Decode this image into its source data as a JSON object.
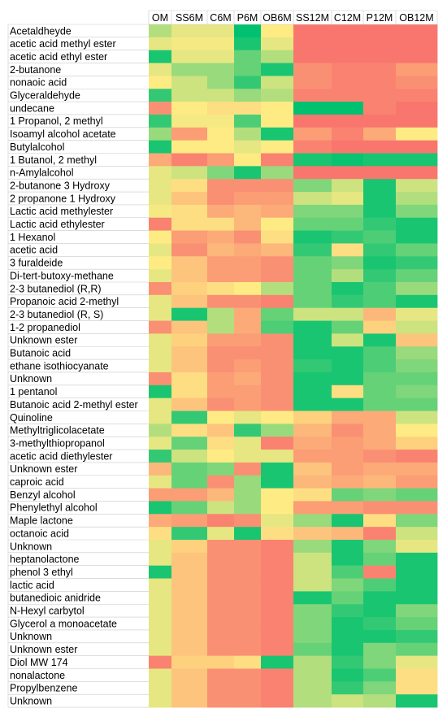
{
  "chart_data": {
    "type": "heatmap",
    "columns": [
      "OM",
      "SS6M",
      "C6M",
      "P6M",
      "OB6M",
      "SS12M",
      "C12M",
      "P12M",
      "OB12M"
    ],
    "rows": [
      "Acetaldheyde",
      "acetic acid methyl ester",
      "acetic acid ethyl ester",
      "2-butanone",
      "nonaoic acid",
      "Glyceraldehyde",
      "undecane",
      "1 Propanol, 2 methyl",
      "Isoamyl alcohol acetate",
      "Butylalcohol",
      "1 Butanol, 2 methyl",
      "n-Amylalcohol",
      "2-butanone 3 Hydroxy",
      "2 propanone 1 Hydroxy",
      "Lactic acid methylester",
      "Lactic acid ethylester",
      "1 Hexanol",
      "acetic acid",
      "3 furaldeide",
      "Di-tert-butoxy-methane",
      "2-3 butanediol (R,R)",
      "Propanoic acid 2-methyl",
      "2-3 butanediol  (R, S)",
      "1-2 propanediol",
      "Unknown ester",
      "Butanoic acid",
      "ethane isothiocyanate",
      "Unknown",
      "1 pentanol",
      "Butanoic acid 2-methyl ester",
      "Quinoline",
      "Methyltriglicolacetate",
      "3-methylthiopropanol",
      "acetic acid diethylester",
      "Unknown ester",
      "caproic acid",
      "Benzyl alcohol",
      "Phenylethyl alcohol",
      "Maple lactone",
      "octanoic acid",
      "Unknown",
      "heptanolactone",
      "phenol 3 ethyl",
      "lactic acid",
      "butanedioic anidride",
      "N-Hexyl carbytol",
      "Glycerol a monoacetate",
      "Unknown",
      "Unknown ester",
      "Diol MW 174",
      "nonalactone",
      "Propylbenzene",
      "Unknown"
    ],
    "color_scale": {
      "low": "#00c170",
      "mid": "#ffeb84",
      "high": "#f8696b"
    },
    "values": [
      [
        0.35,
        0.45,
        0.45,
        0.0,
        0.5,
        0.95,
        0.95,
        0.95,
        0.95
      ],
      [
        0.45,
        0.48,
        0.48,
        0.05,
        0.45,
        0.95,
        0.95,
        0.95,
        0.95
      ],
      [
        0.05,
        0.45,
        0.45,
        0.2,
        0.35,
        0.95,
        0.95,
        0.95,
        0.95
      ],
      [
        0.45,
        0.3,
        0.3,
        0.2,
        0.05,
        0.85,
        0.9,
        0.9,
        0.8
      ],
      [
        0.5,
        0.4,
        0.3,
        0.1,
        0.4,
        0.85,
        0.9,
        0.9,
        0.85
      ],
      [
        0.1,
        0.4,
        0.4,
        0.3,
        0.35,
        0.9,
        0.9,
        0.9,
        0.9
      ],
      [
        0.85,
        0.5,
        0.55,
        0.55,
        0.5,
        0.0,
        0.0,
        0.9,
        0.95
      ],
      [
        0.1,
        0.48,
        0.48,
        0.15,
        0.5,
        0.95,
        0.95,
        0.95,
        0.95
      ],
      [
        0.3,
        0.8,
        0.5,
        0.35,
        0.05,
        0.8,
        0.9,
        0.75,
        0.5
      ],
      [
        0.05,
        0.5,
        0.5,
        0.45,
        0.5,
        0.9,
        0.95,
        0.95,
        0.95
      ],
      [
        0.75,
        0.9,
        0.8,
        0.5,
        0.9,
        0.05,
        0.02,
        0.05,
        0.05
      ],
      [
        0.45,
        0.4,
        0.25,
        0.05,
        0.3,
        0.95,
        0.95,
        0.95,
        0.95
      ],
      [
        0.45,
        0.55,
        0.85,
        0.85,
        0.85,
        0.25,
        0.4,
        0.05,
        0.4
      ],
      [
        0.45,
        0.65,
        0.85,
        0.8,
        0.8,
        0.4,
        0.45,
        0.05,
        0.35
      ],
      [
        0.48,
        0.55,
        0.75,
        0.7,
        0.75,
        0.25,
        0.25,
        0.05,
        0.25
      ],
      [
        0.9,
        0.55,
        0.55,
        0.7,
        0.5,
        0.2,
        0.2,
        0.1,
        0.05
      ],
      [
        0.5,
        0.8,
        0.75,
        0.85,
        0.55,
        0.05,
        0.1,
        0.15,
        0.05
      ],
      [
        0.45,
        0.85,
        0.7,
        0.75,
        0.7,
        0.1,
        0.55,
        0.1,
        0.2
      ],
      [
        0.5,
        0.65,
        0.8,
        0.8,
        0.85,
        0.2,
        0.25,
        0.05,
        0.1
      ],
      [
        0.45,
        0.65,
        0.8,
        0.8,
        0.85,
        0.2,
        0.35,
        0.1,
        0.2
      ],
      [
        0.85,
        0.6,
        0.55,
        0.5,
        0.35,
        0.2,
        0.05,
        0.15,
        0.3
      ],
      [
        0.45,
        0.65,
        0.85,
        0.85,
        0.9,
        0.2,
        0.1,
        0.15,
        0.05
      ],
      [
        0.45,
        0.05,
        0.35,
        0.75,
        0.2,
        0.4,
        0.4,
        0.7,
        0.45
      ],
      [
        0.85,
        0.65,
        0.35,
        0.75,
        0.15,
        0.05,
        0.2,
        0.6,
        0.4
      ],
      [
        0.45,
        0.6,
        0.8,
        0.8,
        0.85,
        0.05,
        0.4,
        0.05,
        0.65
      ],
      [
        0.45,
        0.65,
        0.85,
        0.85,
        0.85,
        0.05,
        0.05,
        0.15,
        0.3
      ],
      [
        0.45,
        0.65,
        0.85,
        0.8,
        0.85,
        0.1,
        0.05,
        0.15,
        0.25
      ],
      [
        0.85,
        0.55,
        0.8,
        0.75,
        0.85,
        0.05,
        0.05,
        0.2,
        0.2
      ],
      [
        0.05,
        0.55,
        0.8,
        0.8,
        0.85,
        0.05,
        0.55,
        0.2,
        0.25
      ],
      [
        0.45,
        0.65,
        0.85,
        0.8,
        0.85,
        0.05,
        0.05,
        0.2,
        0.2
      ],
      [
        0.45,
        0.1,
        0.5,
        0.45,
        0.5,
        0.6,
        0.75,
        0.75,
        0.4
      ],
      [
        0.35,
        0.55,
        0.65,
        0.1,
        0.3,
        0.7,
        0.85,
        0.75,
        0.5
      ],
      [
        0.45,
        0.2,
        0.55,
        0.45,
        0.9,
        0.75,
        0.8,
        0.75,
        0.6
      ],
      [
        0.1,
        0.4,
        0.5,
        0.45,
        0.45,
        0.8,
        0.8,
        0.85,
        0.9
      ],
      [
        0.7,
        0.2,
        0.25,
        0.85,
        0.05,
        0.65,
        0.8,
        0.75,
        0.75
      ],
      [
        0.45,
        0.2,
        0.85,
        0.3,
        0.05,
        0.7,
        0.75,
        0.7,
        0.8
      ],
      [
        0.8,
        0.8,
        0.7,
        0.3,
        0.5,
        0.55,
        0.2,
        0.25,
        0.2
      ],
      [
        0.05,
        0.2,
        0.4,
        0.3,
        0.5,
        0.8,
        0.8,
        0.85,
        0.85
      ],
      [
        0.75,
        0.8,
        0.9,
        0.85,
        0.45,
        0.3,
        0.05,
        0.55,
        0.25
      ],
      [
        0.55,
        0.1,
        0.45,
        0.05,
        0.55,
        0.65,
        0.7,
        0.9,
        0.4
      ],
      [
        0.45,
        0.6,
        0.85,
        0.85,
        0.9,
        0.3,
        0.05,
        0.25,
        0.45
      ],
      [
        0.45,
        0.65,
        0.85,
        0.85,
        0.9,
        0.4,
        0.05,
        0.2,
        0.05
      ],
      [
        0.05,
        0.65,
        0.85,
        0.85,
        0.9,
        0.4,
        0.15,
        0.9,
        0.05
      ],
      [
        0.45,
        0.65,
        0.85,
        0.85,
        0.9,
        0.4,
        0.25,
        0.15,
        0.05
      ],
      [
        0.45,
        0.65,
        0.85,
        0.85,
        0.9,
        0.05,
        0.2,
        0.05,
        0.05
      ],
      [
        0.45,
        0.65,
        0.85,
        0.85,
        0.9,
        0.25,
        0.1,
        0.05,
        0.25
      ],
      [
        0.45,
        0.65,
        0.85,
        0.85,
        0.9,
        0.25,
        0.05,
        0.1,
        0.2
      ],
      [
        0.45,
        0.65,
        0.85,
        0.85,
        0.9,
        0.25,
        0.05,
        0.05,
        0.1
      ],
      [
        0.45,
        0.65,
        0.85,
        0.85,
        0.9,
        0.2,
        0.05,
        0.25,
        0.2
      ],
      [
        0.9,
        0.6,
        0.6,
        0.55,
        0.05,
        0.35,
        0.1,
        0.25,
        0.45
      ],
      [
        0.45,
        0.65,
        0.85,
        0.85,
        0.9,
        0.35,
        0.05,
        0.15,
        0.55
      ],
      [
        0.45,
        0.65,
        0.85,
        0.85,
        0.9,
        0.35,
        0.1,
        0.25,
        0.55
      ],
      [
        0.45,
        0.65,
        0.85,
        0.85,
        0.9,
        0.35,
        0.4,
        0.35,
        0.05
      ]
    ]
  }
}
